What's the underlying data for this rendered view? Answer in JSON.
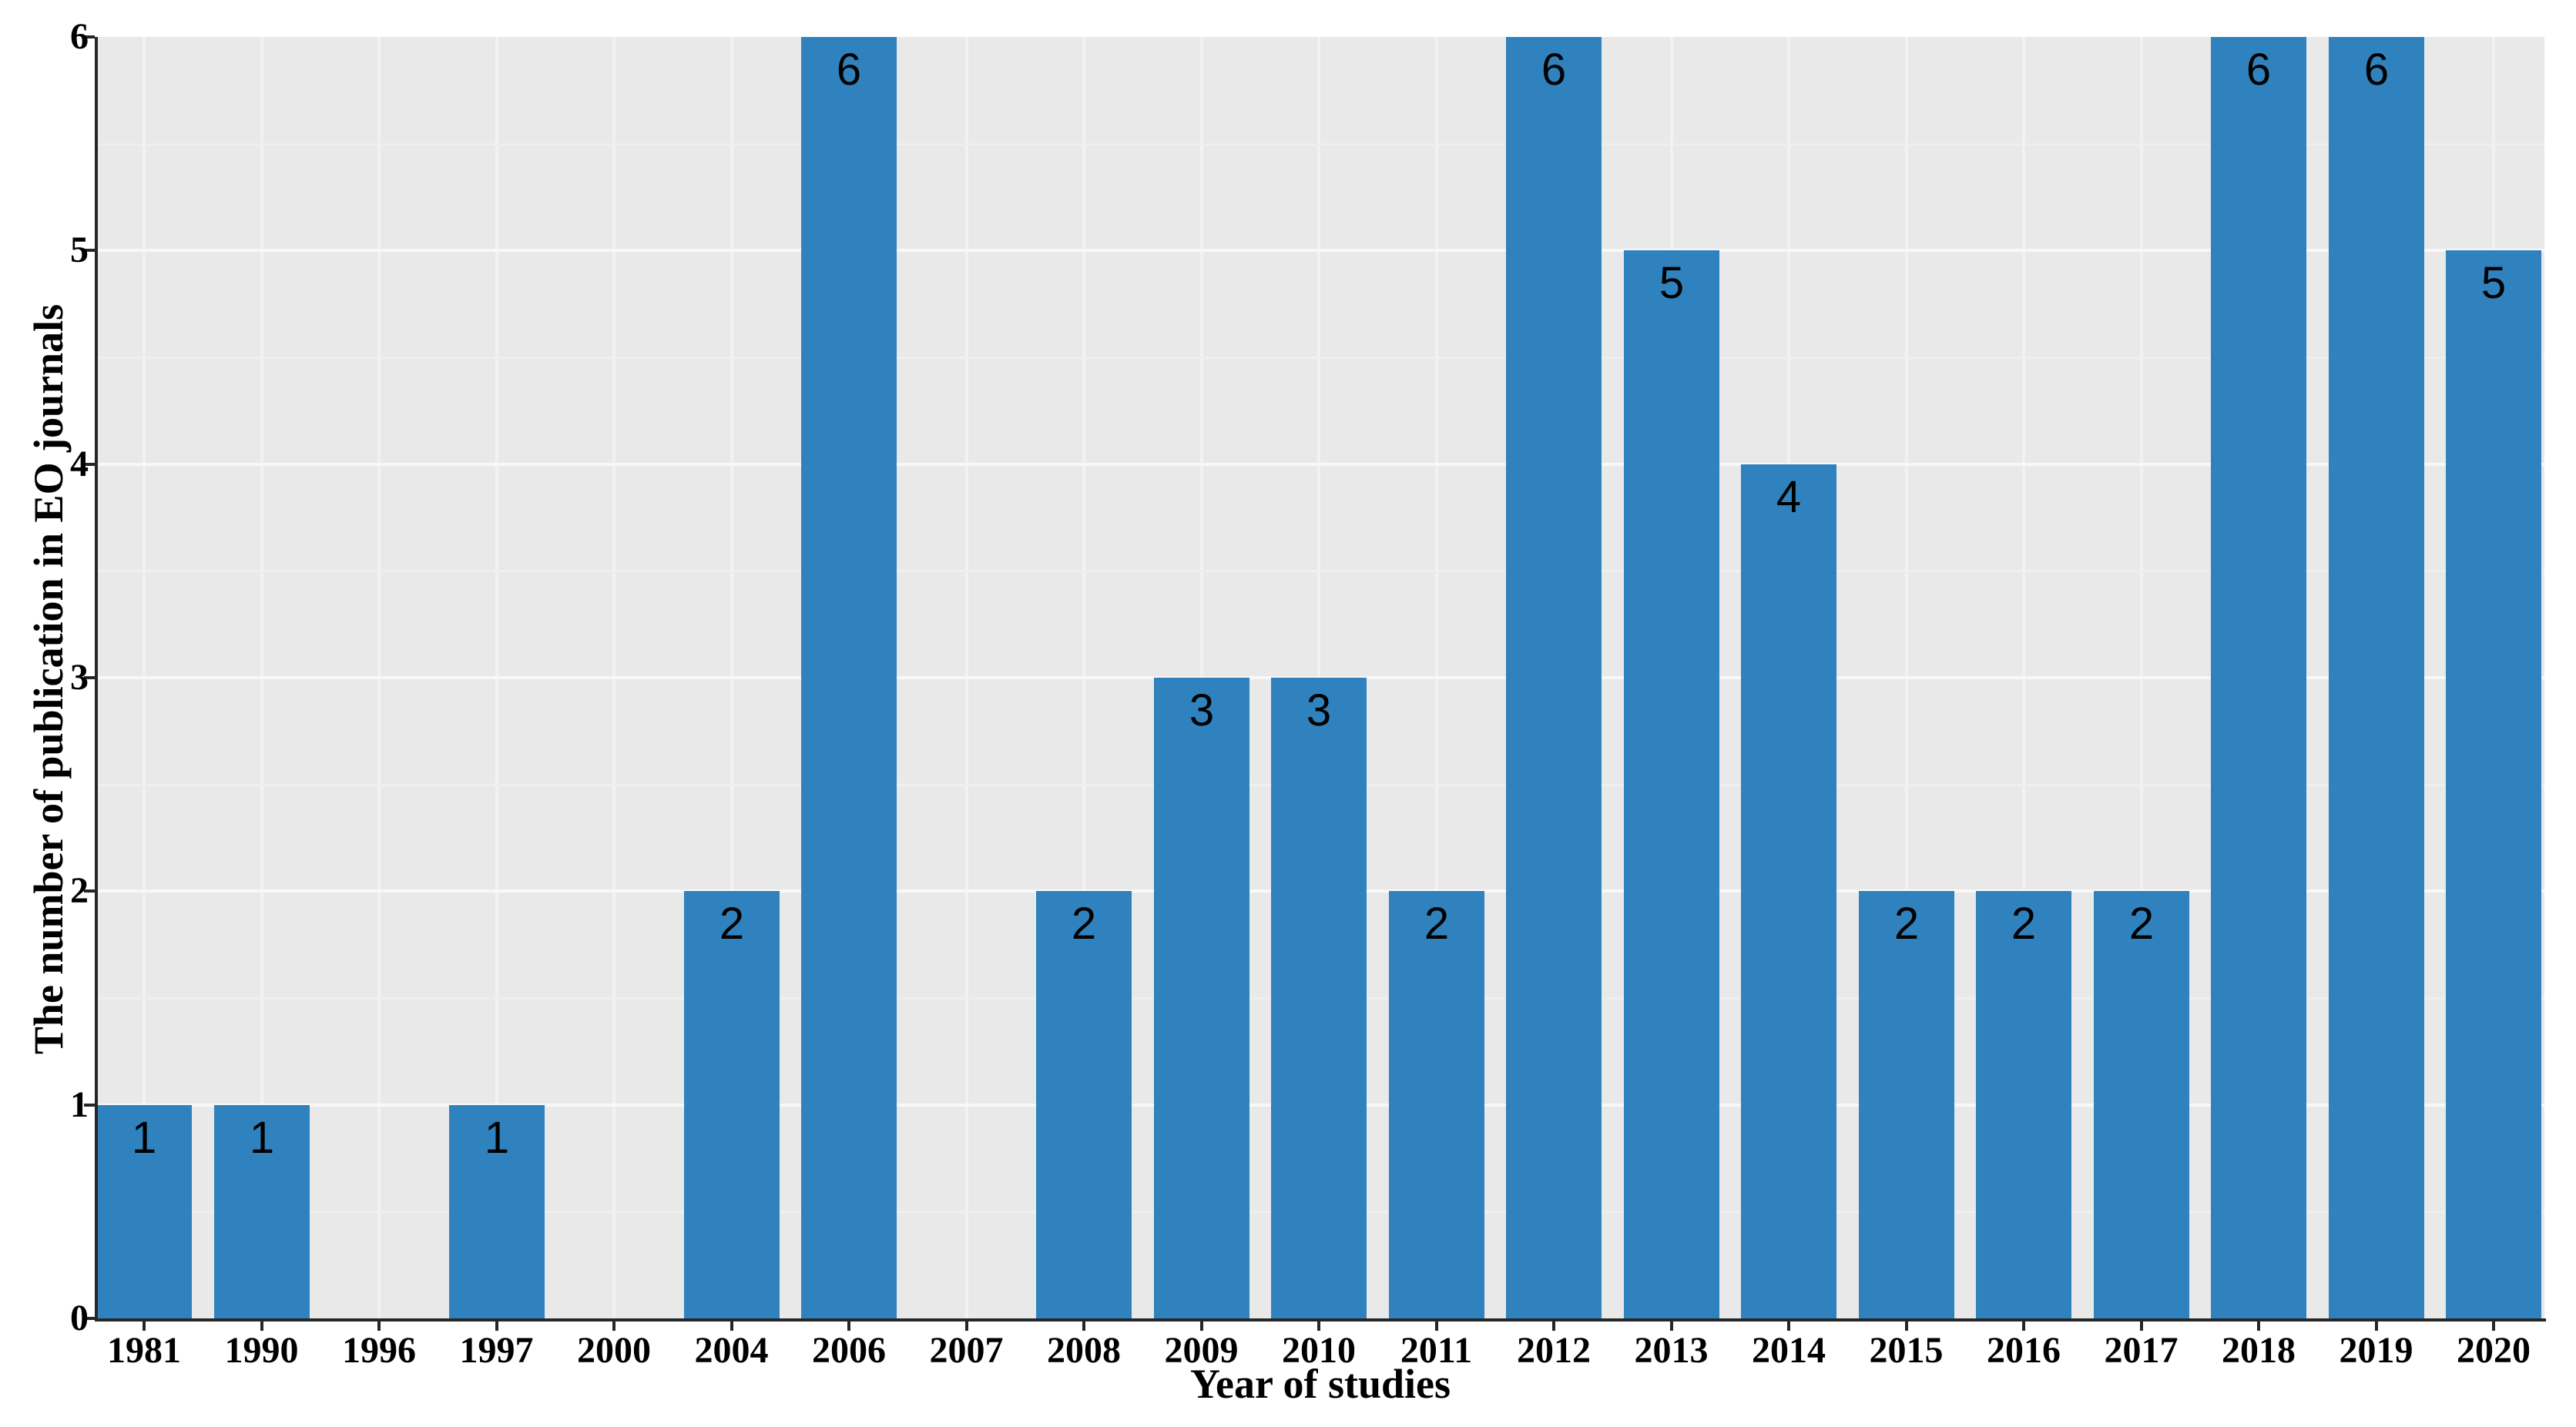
{
  "chart_data": {
    "type": "bar",
    "title": "",
    "categories": [
      "1981",
      "1990",
      "1996",
      "1997",
      "2000",
      "2004",
      "2006",
      "2007",
      "2008",
      "2009",
      "2010",
      "2011",
      "2012",
      "2013",
      "2014",
      "2015",
      "2016",
      "2017",
      "2018",
      "2019",
      "2020"
    ],
    "values": [
      1,
      1,
      0,
      1,
      0,
      2,
      6,
      0,
      2,
      3,
      3,
      2,
      6,
      5,
      4,
      2,
      2,
      2,
      6,
      6,
      5
    ],
    "xlabel": "Year of studies",
    "ylabel": "The number of publication in EO journals",
    "ylim": [
      0,
      6
    ],
    "yticks": [
      "0",
      "1",
      "2",
      "3",
      "4",
      "5",
      "6"
    ],
    "bar_value_labels_shown": true,
    "legend": "none",
    "grid": {
      "horizontal_major": true,
      "horizontal_minor": true,
      "vertical_at_categories": true
    },
    "colors": {
      "bar": "#2f82bd",
      "panel_background": "#e9e9e9",
      "grid_major": "#f8f8f8",
      "grid_minor": "#efefef",
      "grid_vertical": "#f2f2f2",
      "axis": "#262626",
      "text": "#000000",
      "page_background": "#ffffff"
    }
  }
}
